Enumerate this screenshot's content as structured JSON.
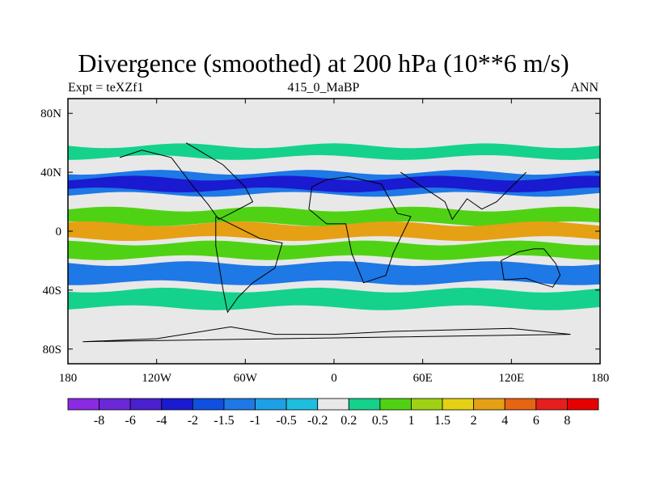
{
  "chart_data": {
    "type": "heatmap",
    "title": "Divergence (smoothed) at 200 hPa (10**6 m/s)",
    "subtitle_left": "Expt = teXZf1",
    "subtitle_center": "415_0_MaBP",
    "subtitle_right": "ANN",
    "x_ticks": [
      "180",
      "120W",
      "60W",
      "0",
      "60E",
      "120E",
      "180"
    ],
    "x_tick_values": [
      -180,
      -120,
      -60,
      0,
      60,
      120,
      180
    ],
    "y_ticks": [
      "80N",
      "40N",
      "0",
      "40S",
      "80S"
    ],
    "y_tick_values": [
      80,
      40,
      0,
      -40,
      -80
    ],
    "xlim": [
      -180,
      180
    ],
    "ylim": [
      -90,
      90
    ],
    "colorbar": {
      "labels": [
        "-8",
        "-6",
        "-4",
        "-2",
        "-1.5",
        "-1",
        "-0.5",
        "-0.2",
        "0.2",
        "0.5",
        "1",
        "1.5",
        "2",
        "4",
        "6",
        "8"
      ],
      "colors": [
        "#8a2be2",
        "#6a28d8",
        "#4b20cf",
        "#1a1ad0",
        "#1050e0",
        "#1e78e6",
        "#1ea0e6",
        "#1ebede",
        "#e8e8e8",
        "#14d28c",
        "#50d214",
        "#a0d214",
        "#e6d214",
        "#e6a014",
        "#e66414",
        "#e61e1e",
        "#e60000"
      ]
    },
    "bands": [
      {
        "lat": [
          50,
          58
        ],
        "level": "0.5",
        "color": "#14d28c"
      },
      {
        "lat": [
          25,
          40
        ],
        "level": "-1",
        "color": "#1e78e6"
      },
      {
        "lat": [
          28,
          36
        ],
        "level": "-4",
        "color": "#1a1ad0"
      },
      {
        "lat": [
          5,
          15
        ],
        "level": "1",
        "color": "#50d214"
      },
      {
        "lat": [
          -5,
          5
        ],
        "level": "2",
        "color": "#e6a014"
      },
      {
        "lat": [
          -18,
          -8
        ],
        "level": "1",
        "color": "#50d214"
      },
      {
        "lat": [
          -35,
          -22
        ],
        "level": "-1",
        "color": "#1e78e6"
      },
      {
        "lat": [
          -52,
          -40
        ],
        "level": "0.5",
        "color": "#14d28c"
      }
    ]
  }
}
